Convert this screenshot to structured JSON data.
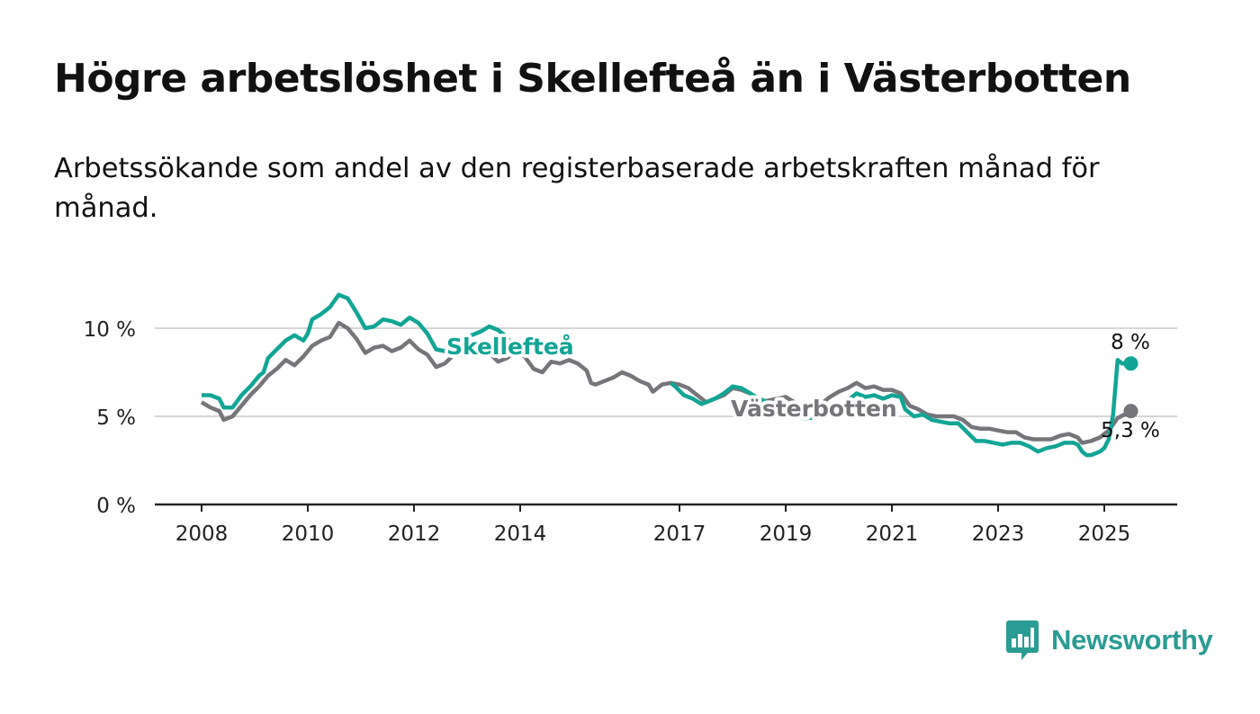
{
  "title": "Högre arbetslöshet i Skellefteå än i Västerbotten",
  "subtitle": "Arbetssökande som andel av den registerbaserade arbetskraften månad för månad.",
  "brand": {
    "name": "Newsworthy",
    "color": "#2b9c93",
    "icon": "bar-chart-speech-bubble-icon"
  },
  "chart_data": {
    "type": "line",
    "x_start": "2008-01",
    "x_end": "2025-07",
    "xlim": [
      "2007-01",
      "2026-06"
    ],
    "ylim": [
      0,
      12
    ],
    "x_ticks": [
      {
        "label": "2008",
        "date": "2008-01"
      },
      {
        "label": "2010",
        "date": "2010-01"
      },
      {
        "label": "2012",
        "date": "2012-01"
      },
      {
        "label": "2014",
        "date": "2014-01"
      },
      {
        "label": "2017",
        "date": "2017-01"
      },
      {
        "label": "2019",
        "date": "2019-01"
      },
      {
        "label": "2021",
        "date": "2021-01"
      },
      {
        "label": "2023",
        "date": "2023-01"
      },
      {
        "label": "2025",
        "date": "2025-01"
      }
    ],
    "y_ticks": [
      {
        "label": "0 %",
        "value": 0
      },
      {
        "label": "5 %",
        "value": 5
      },
      {
        "label": "10 %",
        "value": 10
      }
    ],
    "grid": true,
    "series": [
      {
        "name": "Skellefteå",
        "color": "#12a595",
        "end_label": "8 %",
        "points": [
          [
            "2008-01",
            6.2
          ],
          [
            "2008-03",
            6.2
          ],
          [
            "2008-05",
            6.0
          ],
          [
            "2008-06",
            5.5
          ],
          [
            "2008-08",
            5.5
          ],
          [
            "2008-10",
            6.2
          ],
          [
            "2008-12",
            6.7
          ],
          [
            "2009-02",
            7.3
          ],
          [
            "2009-03",
            7.5
          ],
          [
            "2009-04",
            8.3
          ],
          [
            "2009-06",
            8.8
          ],
          [
            "2009-08",
            9.3
          ],
          [
            "2009-10",
            9.6
          ],
          [
            "2009-12",
            9.3
          ],
          [
            "2010-01",
            9.7
          ],
          [
            "2010-02",
            10.5
          ],
          [
            "2010-04",
            10.8
          ],
          [
            "2010-06",
            11.2
          ],
          [
            "2010-08",
            11.9
          ],
          [
            "2010-10",
            11.7
          ],
          [
            "2010-12",
            10.9
          ],
          [
            "2011-02",
            10.0
          ],
          [
            "2011-04",
            10.1
          ],
          [
            "2011-06",
            10.5
          ],
          [
            "2011-08",
            10.4
          ],
          [
            "2011-10",
            10.2
          ],
          [
            "2011-12",
            10.6
          ],
          [
            "2012-02",
            10.3
          ],
          [
            "2012-04",
            9.7
          ],
          [
            "2012-06",
            8.8
          ],
          [
            "2012-08",
            8.7
          ],
          [
            "2012-10",
            9.3
          ],
          [
            "2012-12",
            9.2
          ],
          [
            "2013-02",
            9.6
          ],
          [
            "2013-04",
            9.8
          ],
          [
            "2013-06",
            10.1
          ],
          [
            "2013-08",
            9.9
          ],
          [
            "2013-10",
            9.5
          ],
          [
            "2013-12",
            8.7
          ]
        ],
        "points_tail": [
          [
            "2016-11",
            6.9
          ],
          [
            "2016-12",
            6.7
          ],
          [
            "2017-02",
            6.2
          ],
          [
            "2017-04",
            6.0
          ],
          [
            "2017-06",
            5.7
          ],
          [
            "2017-07",
            5.8
          ],
          [
            "2017-09",
            6.0
          ],
          [
            "2017-11",
            6.3
          ],
          [
            "2018-01",
            6.7
          ],
          [
            "2018-03",
            6.6
          ],
          [
            "2018-05",
            6.3
          ],
          [
            "2018-07",
            6.0
          ],
          [
            "2018-09",
            5.8
          ],
          [
            "2018-11",
            5.6
          ],
          [
            "2019-01",
            5.3
          ],
          [
            "2019-03",
            5.1
          ],
          [
            "2019-05",
            4.9
          ],
          [
            "2019-06",
            4.9
          ],
          [
            "2019-09",
            5.0
          ],
          [
            "2019-11",
            5.3
          ],
          [
            "2020-01",
            5.6
          ],
          [
            "2020-03",
            5.9
          ],
          [
            "2020-05",
            6.3
          ],
          [
            "2020-07",
            6.1
          ],
          [
            "2020-09",
            6.2
          ],
          [
            "2020-11",
            6.0
          ],
          [
            "2021-01",
            6.2
          ],
          [
            "2021-03",
            6.1
          ],
          [
            "2021-04",
            5.4
          ],
          [
            "2021-06",
            5.0
          ],
          [
            "2021-08",
            5.1
          ],
          [
            "2021-10",
            4.8
          ],
          [
            "2021-12",
            4.7
          ],
          [
            "2022-02",
            4.6
          ],
          [
            "2022-04",
            4.6
          ],
          [
            "2022-06",
            4.1
          ],
          [
            "2022-08",
            3.6
          ],
          [
            "2022-10",
            3.6
          ],
          [
            "2022-12",
            3.5
          ],
          [
            "2023-02",
            3.4
          ],
          [
            "2023-04",
            3.5
          ],
          [
            "2023-06",
            3.5
          ],
          [
            "2023-08",
            3.3
          ],
          [
            "2023-10",
            3.0
          ],
          [
            "2023-12",
            3.2
          ],
          [
            "2024-02",
            3.3
          ],
          [
            "2024-04",
            3.5
          ],
          [
            "2024-06",
            3.5
          ],
          [
            "2024-07",
            3.4
          ],
          [
            "2024-08",
            3.0
          ],
          [
            "2024-09",
            2.8
          ],
          [
            "2024-10",
            2.8
          ],
          [
            "2024-12",
            3.0
          ],
          [
            "2025-01",
            3.2
          ],
          [
            "2025-02",
            3.7
          ],
          [
            "2025-03",
            5.1
          ],
          [
            "2025-04",
            8.2
          ],
          [
            "2025-05",
            8.0
          ],
          [
            "2025-07",
            8.0
          ]
        ]
      },
      {
        "name": "Västerbotten",
        "color": "#76757a",
        "end_label": "5,3 %",
        "points": [
          [
            "2008-01",
            5.8
          ],
          [
            "2008-03",
            5.5
          ],
          [
            "2008-05",
            5.3
          ],
          [
            "2008-06",
            4.8
          ],
          [
            "2008-08",
            5.0
          ],
          [
            "2008-10",
            5.6
          ],
          [
            "2008-12",
            6.2
          ],
          [
            "2009-02",
            6.7
          ],
          [
            "2009-04",
            7.3
          ],
          [
            "2009-06",
            7.7
          ],
          [
            "2009-08",
            8.2
          ],
          [
            "2009-10",
            7.9
          ],
          [
            "2009-12",
            8.4
          ],
          [
            "2010-02",
            9.0
          ],
          [
            "2010-04",
            9.3
          ],
          [
            "2010-06",
            9.5
          ],
          [
            "2010-08",
            10.3
          ],
          [
            "2010-10",
            10.0
          ],
          [
            "2010-12",
            9.4
          ],
          [
            "2011-02",
            8.6
          ],
          [
            "2011-04",
            8.9
          ],
          [
            "2011-06",
            9.0
          ],
          [
            "2011-08",
            8.7
          ],
          [
            "2011-10",
            8.9
          ],
          [
            "2011-12",
            9.3
          ],
          [
            "2012-02",
            8.8
          ],
          [
            "2012-04",
            8.5
          ],
          [
            "2012-06",
            7.8
          ],
          [
            "2012-08",
            8.0
          ],
          [
            "2012-10",
            8.5
          ],
          [
            "2012-12",
            8.5
          ],
          [
            "2013-02",
            8.8
          ],
          [
            "2013-04",
            8.7
          ],
          [
            "2013-06",
            8.6
          ],
          [
            "2013-08",
            8.1
          ],
          [
            "2013-10",
            8.3
          ],
          [
            "2013-12",
            8.7
          ],
          [
            "2014-02",
            8.4
          ],
          [
            "2014-04",
            7.7
          ],
          [
            "2014-06",
            7.5
          ],
          [
            "2014-08",
            8.1
          ],
          [
            "2014-10",
            8.0
          ],
          [
            "2014-12",
            8.2
          ],
          [
            "2015-02",
            8.0
          ],
          [
            "2015-04",
            7.6
          ],
          [
            "2015-05",
            6.9
          ],
          [
            "2015-06",
            6.8
          ],
          [
            "2015-08",
            7.0
          ],
          [
            "2015-10",
            7.2
          ],
          [
            "2015-12",
            7.5
          ],
          [
            "2016-02",
            7.3
          ],
          [
            "2016-04",
            7.0
          ],
          [
            "2016-06",
            6.8
          ],
          [
            "2016-07",
            6.4
          ],
          [
            "2016-09",
            6.8
          ],
          [
            "2016-11",
            6.9
          ],
          [
            "2017-01",
            6.8
          ],
          [
            "2017-03",
            6.6
          ],
          [
            "2017-05",
            6.2
          ],
          [
            "2017-07",
            5.8
          ],
          [
            "2017-09",
            6.0
          ],
          [
            "2017-11",
            6.2
          ],
          [
            "2018-01",
            6.6
          ],
          [
            "2018-03",
            6.5
          ],
          [
            "2018-05",
            6.3
          ],
          [
            "2018-07",
            5.8
          ],
          [
            "2018-09",
            5.9
          ],
          [
            "2018-11",
            6.0
          ],
          [
            "2019-01",
            6.1
          ],
          [
            "2019-03",
            5.8
          ],
          [
            "2019-05",
            5.5
          ],
          [
            "2019-07",
            5.6
          ],
          [
            "2019-09",
            5.7
          ],
          [
            "2019-11",
            6.1
          ],
          [
            "2020-01",
            6.4
          ],
          [
            "2020-03",
            6.6
          ],
          [
            "2020-05",
            6.9
          ],
          [
            "2020-07",
            6.6
          ],
          [
            "2020-09",
            6.7
          ],
          [
            "2020-11",
            6.5
          ],
          [
            "2021-01",
            6.5
          ],
          [
            "2021-03",
            6.3
          ],
          [
            "2021-05",
            5.6
          ],
          [
            "2021-07",
            5.4
          ],
          [
            "2021-09",
            5.1
          ],
          [
            "2021-11",
            5.0
          ],
          [
            "2022-01",
            5.0
          ],
          [
            "2022-03",
            5.0
          ],
          [
            "2022-05",
            4.8
          ],
          [
            "2022-07",
            4.4
          ],
          [
            "2022-09",
            4.3
          ],
          [
            "2022-11",
            4.3
          ],
          [
            "2023-01",
            4.2
          ],
          [
            "2023-03",
            4.1
          ],
          [
            "2023-05",
            4.1
          ],
          [
            "2023-07",
            3.8
          ],
          [
            "2023-09",
            3.7
          ],
          [
            "2023-11",
            3.7
          ],
          [
            "2024-01",
            3.7
          ],
          [
            "2024-03",
            3.9
          ],
          [
            "2024-05",
            4.0
          ],
          [
            "2024-07",
            3.8
          ],
          [
            "2024-08",
            3.5
          ],
          [
            "2024-10",
            3.6
          ],
          [
            "2024-12",
            3.8
          ],
          [
            "2025-02",
            4.2
          ],
          [
            "2025-04",
            4.9
          ],
          [
            "2025-07",
            5.3
          ]
        ]
      }
    ],
    "inline_labels": [
      {
        "series": "Skellefteå",
        "text": "Skellefteå"
      },
      {
        "series": "Västerbotten",
        "text": "Västerbotten"
      }
    ]
  }
}
